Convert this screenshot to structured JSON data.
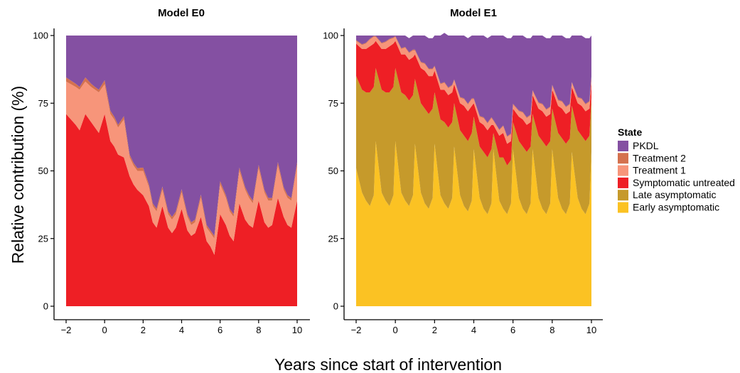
{
  "chart_data": {
    "type": "area",
    "stacked": true,
    "xlabel": "Years since start of intervention",
    "ylabel": "Relative contribution (%)",
    "xlim": [
      -2,
      10
    ],
    "ylim": [
      0,
      100
    ],
    "xticks": [
      -2,
      0,
      2,
      4,
      6,
      8,
      10
    ],
    "xtick_labels": [
      "−2",
      "0",
      "2",
      "4",
      "6",
      "8",
      "10"
    ],
    "yticks": [
      0,
      25,
      50,
      75,
      100
    ],
    "ytick_labels": [
      "0",
      "25",
      "50",
      "75",
      "100"
    ],
    "grid": false,
    "legend": {
      "title": "State",
      "position": "right",
      "entries": [
        {
          "name": "PKDL",
          "color": "#8450A2"
        },
        {
          "name": "Treatment 2",
          "color": "#D4714E"
        },
        {
          "name": "Treatment 1",
          "color": "#F7957A"
        },
        {
          "name": "Symptomatic untreated",
          "color": "#EE1F25"
        },
        {
          "name": "Late asymptomatic",
          "color": "#C69A2B"
        },
        {
          "name": "Early asymptomatic",
          "color": "#FBC223"
        }
      ]
    },
    "panels": [
      {
        "title": "Model E0",
        "x": [
          -2,
          -1.5,
          -1.3,
          -1,
          -0.7,
          -0.5,
          -0.3,
          0,
          0.3,
          0.5,
          0.7,
          1,
          1.3,
          1.5,
          1.7,
          2,
          2.3,
          2.5,
          2.7,
          3,
          3.3,
          3.5,
          3.7,
          4,
          4.3,
          4.5,
          4.7,
          5,
          5.3,
          5.5,
          5.7,
          6,
          6.3,
          6.5,
          6.7,
          7,
          7.3,
          7.5,
          7.7,
          8,
          8.3,
          8.5,
          8.7,
          9,
          9.3,
          9.5,
          9.7,
          10
        ],
        "series": [
          {
            "name": "Early asymptomatic",
            "values": [
              0,
              0,
              0,
              0,
              0,
              0,
              0,
              0,
              0,
              0,
              0,
              0,
              0,
              0,
              0,
              0,
              0,
              0,
              0,
              0,
              0,
              0,
              0,
              0,
              0,
              0,
              0,
              0,
              0,
              0,
              0,
              0,
              0,
              0,
              0,
              0,
              0,
              0,
              0,
              0,
              0,
              0,
              0,
              0,
              0,
              0,
              0,
              0
            ]
          },
          {
            "name": "Late asymptomatic",
            "values": [
              0,
              0,
              0,
              0,
              0,
              0,
              0,
              0,
              0,
              0,
              0,
              0,
              0,
              0,
              0,
              0,
              0,
              0,
              0,
              0,
              0,
              0,
              0,
              0,
              0,
              0,
              0,
              0,
              0,
              0,
              0,
              0,
              0,
              0,
              0,
              0,
              0,
              0,
              0,
              0,
              0,
              0,
              0,
              0,
              0,
              0,
              0,
              0
            ]
          },
          {
            "name": "Symptomatic untreated",
            "values": [
              71,
              67,
              65,
              71,
              68,
              66,
              64,
              71,
              61,
              59,
              56,
              55,
              48,
              45,
              43,
              41,
              37,
              31,
              29,
              37,
              29,
              27,
              29,
              36,
              28,
              26,
              27,
              33,
              24,
              22,
              19,
              34,
              30,
              26,
              24,
              38,
              32,
              30,
              29,
              39,
              31,
              29,
              30,
              40,
              33,
              30,
              29,
              39
            ]
          },
          {
            "name": "Treatment 1",
            "values": [
              12,
              14,
              15,
              12,
              13,
              14,
              15,
              11,
              10,
              10,
              10,
              14,
              7,
              7,
              7,
              9,
              7,
              6,
              6,
              6,
              5,
              5,
              5,
              6,
              5,
              4,
              4,
              7,
              5,
              5,
              6,
              11,
              10,
              9,
              9,
              12,
              11,
              10,
              9,
              12,
              11,
              10,
              9,
              12,
              10,
              10,
              10,
              13
            ]
          },
          {
            "name": "Treatment 2",
            "values": [
              1.5,
              1.2,
              1,
              1.5,
              1.2,
              1,
              1,
              1.5,
              1.2,
              1,
              1,
              1.2,
              1,
              1,
              1,
              1.2,
              1,
              1,
              1,
              1.2,
              1,
              1,
              1,
              1.2,
              1,
              1,
              1,
              1.2,
              1,
              1,
              1,
              1.2,
              1,
              1,
              1,
              1.2,
              1,
              1,
              1,
              1.2,
              1,
              1,
              1,
              1.2,
              1,
              1,
              1,
              1.2
            ]
          },
          {
            "name": "PKDL",
            "values": [
              15.5,
              17.8,
              19,
              15.5,
              17.8,
              19,
              20,
              16.5,
              27.8,
              30,
              33,
              29.8,
              44,
              47,
              49,
              48.8,
              55,
              62,
              64,
              55.8,
              65,
              67,
              65,
              56.8,
              66,
              69,
              68,
              58.8,
              70,
              72,
              74,
              53.8,
              59,
              64,
              66,
              48.8,
              56,
              59,
              61,
              47.8,
              57,
              60,
              60,
              46.8,
              56,
              59,
              60,
              46.8
            ]
          }
        ]
      },
      {
        "title": "Model E1",
        "x": [
          -2,
          -1.7,
          -1.5,
          -1.3,
          -1.1,
          -1,
          -0.7,
          -0.5,
          -0.3,
          -0.1,
          0,
          0.3,
          0.5,
          0.7,
          0.9,
          1,
          1.3,
          1.5,
          1.7,
          1.9,
          2,
          2.3,
          2.5,
          2.7,
          2.9,
          3,
          3.3,
          3.5,
          3.7,
          3.9,
          4,
          4.3,
          4.5,
          4.7,
          4.9,
          5,
          5.3,
          5.5,
          5.7,
          5.9,
          6,
          6.3,
          6.5,
          6.7,
          6.9,
          7,
          7.3,
          7.5,
          7.7,
          7.9,
          8,
          8.3,
          8.5,
          8.7,
          8.9,
          9,
          9.3,
          9.5,
          9.7,
          9.9,
          10
        ],
        "series": [
          {
            "name": "Early asymptomatic",
            "values": [
              51,
              42,
              39,
              37,
              41,
              61,
              42,
              39,
              37,
              41,
              61,
              42,
              39,
              37,
              41,
              60,
              42,
              38,
              36,
              40,
              60,
              41,
              38,
              36,
              40,
              59,
              41,
              37,
              35,
              39,
              58,
              40,
              36,
              34,
              38,
              58,
              39,
              36,
              34,
              38,
              58,
              40,
              36,
              34,
              38,
              58,
              40,
              36,
              34,
              38,
              58,
              40,
              36,
              34,
              38,
              57,
              40,
              36,
              34,
              38,
              57
            ]
          },
          {
            "name": "Late asymptomatic",
            "values": [
              34,
              38,
              40,
              42,
              40,
              27,
              38,
              40,
              42,
              40,
              27,
              37,
              39,
              39,
              37,
              24,
              33,
              35,
              35,
              33,
              19,
              28,
              30,
              30,
              28,
              16,
              24,
              26,
              26,
              25,
              12,
              19,
              21,
              21,
              20,
              6,
              16,
              19,
              18,
              16,
              10,
              21,
              23,
              23,
              21,
              13,
              23,
              25,
              25,
              23,
              15,
              24,
              26,
              26,
              24,
              17,
              25,
              27,
              27,
              25,
              20
            ]
          },
          {
            "name": "Symptomatic untreated",
            "values": [
              12,
              15,
              16,
              17,
              16,
              10,
              15,
              16,
              17,
              16,
              10,
              14,
              15,
              15,
              14,
              9,
              13,
              14,
              14,
              12,
              8,
              11,
              12,
              12,
              11,
              7,
              10,
              11,
              11,
              10,
              5,
              9,
              10,
              10,
              9,
              3,
              8,
              9,
              8,
              7,
              5,
              9,
              10,
              10,
              9,
              7,
              10,
              11,
              11,
              10,
              7,
              10,
              11,
              11,
              10,
              7,
              10,
              11,
              11,
              10,
              6
            ]
          },
          {
            "name": "Treatment 1",
            "values": [
              1,
              1.5,
              2,
              2.5,
              2.5,
              1.5,
              2,
              2.5,
              2.5,
              2,
              1.5,
              2,
              2.5,
              2.5,
              2.5,
              1.5,
              2,
              2.5,
              2.5,
              2.5,
              1.5,
              2,
              2.5,
              2.5,
              2.5,
              1.5,
              2,
              2.5,
              2.5,
              2.5,
              1.5,
              2,
              2.5,
              2.5,
              2.5,
              1.5,
              2,
              2.5,
              2.5,
              2.5,
              1.5,
              2,
              2.5,
              2.5,
              2.5,
              1.5,
              2,
              2.5,
              2.5,
              2.5,
              1.5,
              2,
              2.5,
              2.5,
              2.5,
              1.5,
              2,
              2.5,
              2.5,
              2.5,
              1.5
            ]
          },
          {
            "name": "Treatment 2",
            "values": [
              0.3,
              0.3,
              0.3,
              0.3,
              0.3,
              0.3,
              0.3,
              0.3,
              0.3,
              0.3,
              0.3,
              0.3,
              0.3,
              0.3,
              0.3,
              0.3,
              0.3,
              0.3,
              0.3,
              0.3,
              0.3,
              0.3,
              0.3,
              0.3,
              0.3,
              0.3,
              0.3,
              0.3,
              0.3,
              0.3,
              0.3,
              0.3,
              0.3,
              0.3,
              0.3,
              0.3,
              0.3,
              0.3,
              0.3,
              0.3,
              0.3,
              0.3,
              0.3,
              0.3,
              0.3,
              0.3,
              0.3,
              0.3,
              0.3,
              0.3,
              0.3,
              0.3,
              0.3,
              0.3,
              0.3,
              0.3,
              0.3,
              0.3,
              0.3,
              0.3,
              0.3
            ]
          },
          {
            "name": "PKDL",
            "values": [
              1.7,
              3.2,
              2.7,
              1.2,
              0.2,
              0.2,
              2.7,
              2.2,
              1.2,
              0.7,
              0.2,
              4.7,
              4.2,
              5.2,
              5.2,
              5.2,
              9.7,
              10.2,
              11.2,
              11.2,
              11.2,
              17.7,
              18.2,
              19.2,
              18.2,
              16.2,
              22.7,
              23.2,
              24.2,
              23.2,
              23.2,
              29.7,
              30.2,
              31.2,
              30.2,
              31.2,
              34.7,
              33.2,
              36.2,
              35.2,
              25.2,
              27.7,
              28.2,
              29.2,
              28.2,
              20.2,
              24.7,
              25.2,
              26.2,
              25.2,
              18.2,
              23.7,
              24.2,
              25.2,
              24.2,
              17.2,
              22.7,
              23.2,
              24.2,
              23.2,
              15.2
            ]
          }
        ]
      }
    ]
  }
}
